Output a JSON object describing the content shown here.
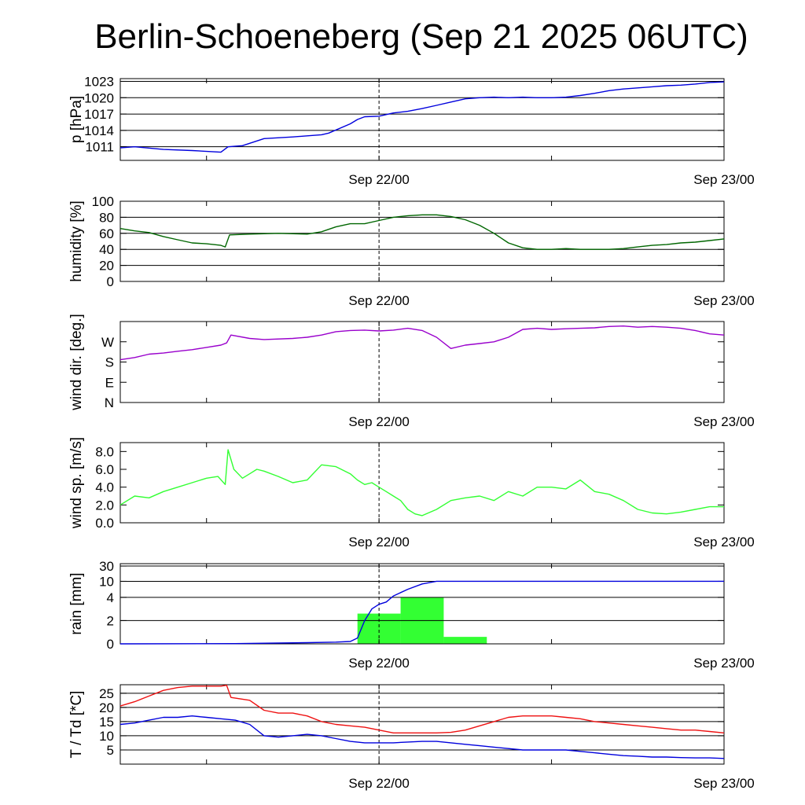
{
  "title": "Berlin-Schoeneberg (Sep 21 2025 06UTC)",
  "colors": {
    "pressure": "#0000dd",
    "humidity": "#006600",
    "wind_dir": "#9900cc",
    "wind_speed": "#33ff33",
    "rain_bars": "#33ff33",
    "rain_cumulative": "#0000dd",
    "temperature": "#ee1111",
    "dewpoint": "#0000dd"
  },
  "chart_data": [
    {
      "type": "line",
      "ylabel": "p [hPa]",
      "x_ticks": [
        "Sep 22/00",
        "Sep 23/00"
      ],
      "x_range_hours": [
        -18,
        24
      ],
      "ylim": [
        1008.5,
        1023.5
      ],
      "y_ticks": [
        "1011",
        "1014",
        "1017",
        "1020",
        "1023"
      ],
      "grid": true,
      "series": [
        {
          "values_x": [
            -18,
            -17,
            -15,
            -13,
            -11,
            -10.5,
            -9.5,
            -8,
            -6,
            -5,
            -4,
            -3.5,
            -2,
            -1.5,
            -1,
            0,
            1,
            2,
            3,
            4,
            5,
            6,
            7,
            8,
            9,
            10,
            11,
            12,
            13,
            14,
            15,
            16,
            17,
            18,
            19,
            20,
            21,
            22,
            23,
            24
          ],
          "values_y": [
            1010.8,
            1011.0,
            1010.5,
            1010.3,
            1010.0,
            1011.0,
            1011.2,
            1012.5,
            1012.8,
            1013.0,
            1013.2,
            1013.5,
            1015.2,
            1016.0,
            1016.5,
            1016.6,
            1017.2,
            1017.5,
            1018.0,
            1018.6,
            1019.2,
            1019.8,
            1020.0,
            1020.1,
            1020.0,
            1020.1,
            1020.0,
            1020.0,
            1020.1,
            1020.4,
            1020.8,
            1021.3,
            1021.6,
            1021.8,
            1022.0,
            1022.2,
            1022.3,
            1022.5,
            1022.8,
            1022.9
          ]
        }
      ]
    },
    {
      "type": "line",
      "ylabel": "humidity [%]",
      "x_ticks": [
        "Sep 22/00",
        "Sep 23/00"
      ],
      "x_range_hours": [
        -18,
        24
      ],
      "ylim": [
        0,
        100
      ],
      "y_ticks": [
        "0",
        "20",
        "40",
        "60",
        "80",
        "100"
      ],
      "grid": true,
      "series": [
        {
          "values_x": [
            -18,
            -17,
            -16,
            -15,
            -14,
            -13,
            -12,
            -11,
            -10.7,
            -10.4,
            -9,
            -7,
            -5,
            -4,
            -3,
            -2,
            -1,
            0,
            1,
            2,
            3,
            4,
            5,
            6,
            7,
            8,
            9,
            10,
            11,
            12,
            13,
            14,
            15,
            16,
            17,
            18,
            19,
            20,
            21,
            22,
            23,
            24
          ],
          "values_y": [
            66,
            63,
            61,
            56,
            52,
            48,
            47,
            45,
            43,
            58,
            59,
            60,
            59,
            62,
            68,
            72,
            72,
            76,
            80,
            82,
            83,
            83,
            81,
            77,
            70,
            60,
            48,
            42,
            40,
            40,
            41,
            40,
            40,
            40,
            41,
            43,
            45,
            46,
            48,
            49,
            51,
            53
          ]
        }
      ]
    },
    {
      "type": "line",
      "ylabel": "wind dir. [deg.]",
      "x_ticks": [
        "Sep 22/00",
        "Sep 23/00"
      ],
      "x_range_hours": [
        -18,
        24
      ],
      "ylim": [
        0,
        360
      ],
      "y_ticks": [
        "N",
        "E",
        "S",
        "W"
      ],
      "grid": false,
      "series": [
        {
          "values_x": [
            -18,
            -17,
            -16,
            -15,
            -14,
            -13,
            -12,
            -11,
            -10.6,
            -10.3,
            -9,
            -8,
            -6,
            -5,
            -4,
            -3,
            -2,
            -1,
            0,
            1,
            2,
            3,
            4,
            5,
            6,
            7,
            8,
            9,
            10,
            11,
            12,
            13,
            14,
            15,
            16,
            17,
            18,
            19,
            20,
            21,
            22,
            23,
            24
          ],
          "values_y": [
            190,
            200,
            215,
            220,
            228,
            235,
            245,
            255,
            265,
            300,
            285,
            280,
            285,
            290,
            300,
            315,
            320,
            322,
            318,
            322,
            330,
            320,
            290,
            240,
            255,
            262,
            270,
            290,
            325,
            330,
            325,
            328,
            330,
            332,
            338,
            340,
            335,
            338,
            335,
            330,
            320,
            305,
            300
          ]
        }
      ]
    },
    {
      "type": "line",
      "ylabel": "wind sp. [m/s]",
      "x_ticks": [
        "Sep 22/00",
        "Sep 23/00"
      ],
      "x_range_hours": [
        -18,
        24
      ],
      "ylim": [
        0,
        9
      ],
      "y_ticks": [
        "0.0",
        "2.0",
        "4.0",
        "6.0",
        "8.0"
      ],
      "grid": false,
      "series": [
        {
          "values_x": [
            -18,
            -17,
            -16,
            -15,
            -14,
            -13,
            -12,
            -11.2,
            -10.7,
            -10.5,
            -10.1,
            -9.5,
            -9,
            -8.5,
            -8,
            -7,
            -6,
            -5,
            -4,
            -3,
            -2,
            -1.5,
            -1,
            -0.5,
            0,
            0.5,
            1,
            1.5,
            2,
            2.5,
            3,
            4,
            5,
            6,
            7,
            8,
            9,
            10,
            11,
            12,
            13,
            14,
            15,
            16,
            17,
            18,
            19,
            20,
            21,
            22,
            23,
            24
          ],
          "values_y": [
            2.0,
            3.0,
            2.8,
            3.5,
            4.0,
            4.5,
            5.0,
            5.2,
            4.3,
            8.2,
            6.0,
            5.0,
            5.5,
            6.0,
            5.8,
            5.2,
            4.5,
            4.8,
            6.5,
            6.3,
            5.5,
            4.8,
            4.3,
            4.5,
            4.0,
            3.5,
            3.0,
            2.5,
            1.5,
            1.0,
            0.8,
            1.5,
            2.5,
            2.8,
            3.0,
            2.5,
            3.5,
            3.0,
            4.0,
            4.0,
            3.8,
            4.8,
            3.5,
            3.2,
            2.5,
            1.5,
            1.1,
            1.0,
            1.2,
            1.5,
            1.8,
            1.8
          ]
        }
      ]
    },
    {
      "type": "bar",
      "ylabel": "rain [mm]",
      "x_ticks": [
        "Sep 22/00",
        "Sep 23/00"
      ],
      "x_range_hours": [
        -18,
        24
      ],
      "y_ticks": [
        "0",
        "2",
        "4",
        "10",
        "30"
      ],
      "grid": true,
      "bars": [
        {
          "start_hour": -1.5,
          "end_hour": 1.5,
          "value": 2.6
        },
        {
          "start_hour": 1.5,
          "end_hour": 4.5,
          "value": 4.0
        },
        {
          "start_hour": 4.5,
          "end_hour": 7.5,
          "value": 0.6
        }
      ],
      "cumulative": {
        "values_x": [
          -18,
          -10,
          -5,
          -3,
          -2,
          -1.5,
          -1,
          -0.5,
          0,
          0.5,
          1,
          2,
          3,
          4,
          24
        ],
        "values_y": [
          0,
          0.02,
          0.1,
          0.15,
          0.2,
          0.5,
          2.0,
          3.0,
          3.4,
          3.6,
          4.5,
          7.0,
          9.0,
          10.0,
          10.0
        ]
      }
    },
    {
      "type": "line",
      "ylabel": "T / Td [*C]",
      "x_ticks": [
        "Sep 22/00",
        "Sep 23/00"
      ],
      "x_range_hours": [
        -18,
        24
      ],
      "ylim": [
        0,
        28
      ],
      "y_ticks": [
        "5",
        "10",
        "15",
        "20",
        "25"
      ],
      "grid": true,
      "series": [
        {
          "name": "T",
          "values_x": [
            -18,
            -17,
            -16,
            -15,
            -14,
            -13,
            -12,
            -11,
            -10.6,
            -10.3,
            -9,
            -8,
            -7,
            -6,
            -5,
            -4,
            -3,
            -2,
            -1,
            0,
            1,
            2,
            3,
            4,
            5,
            6,
            7,
            8,
            9,
            10,
            11,
            12,
            13,
            14,
            15,
            16,
            17,
            18,
            19,
            20,
            21,
            22,
            23,
            24
          ],
          "values_y": [
            20.5,
            22,
            24,
            26,
            27,
            27.5,
            27.5,
            27.5,
            27.8,
            23.5,
            22.5,
            19,
            18,
            18,
            17,
            15,
            14,
            13.5,
            13,
            12,
            11,
            11,
            11,
            11,
            11.2,
            12,
            13.5,
            15,
            16.5,
            17,
            17,
            17,
            16.5,
            16,
            15,
            14.5,
            14,
            13.5,
            13,
            12.5,
            12,
            12,
            11.5,
            11
          ]
        },
        {
          "name": "Td",
          "values_x": [
            -18,
            -17,
            -16,
            -15,
            -14,
            -13,
            -12,
            -11,
            -10,
            -9,
            -8,
            -7,
            -6,
            -5,
            -4,
            -3,
            -2,
            -1,
            0,
            1,
            2,
            3,
            4,
            5,
            6,
            7,
            8,
            9,
            10,
            11,
            12,
            13,
            14,
            15,
            16,
            17,
            18,
            19,
            20,
            21,
            22,
            23,
            24
          ],
          "values_y": [
            14,
            14.5,
            15.5,
            16.5,
            16.5,
            17,
            16.5,
            16,
            15.5,
            14,
            10,
            9.5,
            10,
            10.5,
            10,
            9,
            8,
            7.5,
            7.5,
            7.5,
            7.8,
            8,
            8,
            7.5,
            7,
            6.5,
            6,
            5.5,
            5,
            5,
            5,
            5,
            4.5,
            4,
            3.5,
            3,
            2.8,
            2.5,
            2.5,
            2.3,
            2.2,
            2.2,
            2
          ]
        }
      ]
    }
  ]
}
